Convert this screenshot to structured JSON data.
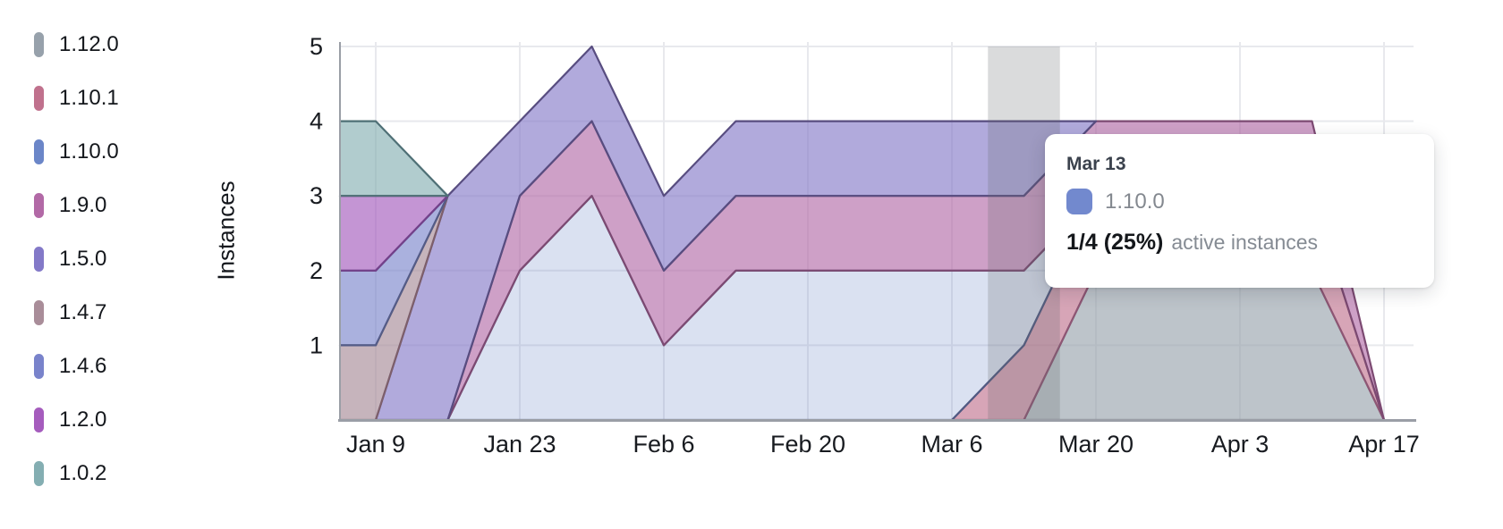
{
  "chart_data": {
    "type": "area",
    "stacked": true,
    "ylabel": "Instances",
    "ylim": [
      0,
      5
    ],
    "yticks": [
      "1",
      "2",
      "3",
      "4",
      "5"
    ],
    "x": [
      "Jan 9",
      "Jan 16",
      "Jan 23",
      "Jan 30",
      "Feb 6",
      "Feb 13",
      "Feb 20",
      "Feb 27",
      "Mar 6",
      "Mar 13",
      "Mar 20",
      "Mar 27",
      "Apr 3",
      "Apr 10",
      "Apr 17"
    ],
    "xticks": [
      {
        "label": "Jan 9",
        "week": 0
      },
      {
        "label": "Jan 23",
        "week": 2
      },
      {
        "label": "Feb 6",
        "week": 4
      },
      {
        "label": "Feb 20",
        "week": 6
      },
      {
        "label": "Mar 6",
        "week": 8
      },
      {
        "label": "Mar 20",
        "week": 10
      },
      {
        "label": "Apr 3",
        "week": 12
      },
      {
        "label": "Apr 17",
        "week": 14
      }
    ],
    "grid": true,
    "legend_position": "left",
    "stack_order_bottom_to_top": [
      "1.12.0",
      "1.10.1",
      "1.10.0",
      "1.9.0",
      "1.5.0",
      "1.4.7",
      "1.4.6",
      "1.2.0",
      "1.0.2"
    ],
    "series": [
      {
        "name": "1.12.0",
        "fill": "rgba(151,161,171,0.63)",
        "stroke": "#6f7680",
        "values": [
          0,
          0,
          0,
          0,
          0,
          0,
          0,
          0,
          0,
          0,
          2,
          2,
          2,
          2,
          0
        ]
      },
      {
        "name": "1.10.1",
        "fill": "rgba(192,113,141,0.63)",
        "stroke": "#8e5674",
        "values": [
          0,
          0,
          0,
          0,
          0,
          0,
          0,
          0,
          0,
          1,
          1,
          1,
          1,
          1,
          0
        ]
      },
      {
        "name": "1.10.0",
        "fill": "rgba(107,134,200,0.25)",
        "stroke": "#4f5a83",
        "values": [
          0,
          0,
          2,
          3,
          1,
          2,
          2,
          2,
          2,
          1,
          0,
          0,
          0,
          0,
          0
        ]
      },
      {
        "name": "1.9.0",
        "fill": "rgba(178,105,166,0.63)",
        "stroke": "#7c4a72",
        "values": [
          0,
          0,
          1,
          1,
          1,
          1,
          1,
          1,
          1,
          1,
          1,
          1,
          1,
          1,
          0
        ]
      },
      {
        "name": "1.5.0",
        "fill": "rgba(131,121,200,0.63)",
        "stroke": "#584d80",
        "values": [
          0,
          3,
          1,
          1,
          1,
          1,
          1,
          1,
          1,
          1,
          0,
          0,
          0,
          0,
          0
        ]
      },
      {
        "name": "1.4.7",
        "fill": "rgba(169,141,153,0.66)",
        "stroke": "#7d5f6b",
        "values": [
          1,
          0,
          0,
          0,
          0,
          0,
          0,
          0,
          0,
          0,
          0,
          0,
          0,
          0,
          0
        ]
      },
      {
        "name": "1.4.6",
        "fill": "rgba(121,131,203,0.63)",
        "stroke": "#545c87",
        "values": [
          1,
          0,
          0,
          0,
          0,
          0,
          0,
          0,
          0,
          0,
          0,
          0,
          0,
          0,
          0
        ]
      },
      {
        "name": "1.2.0",
        "fill": "rgba(165,92,189,0.65)",
        "stroke": "#73418a",
        "values": [
          1,
          0,
          0,
          0,
          0,
          0,
          0,
          0,
          0,
          0,
          0,
          0,
          0,
          0,
          0
        ]
      },
      {
        "name": "1.0.2",
        "fill": "rgba(132,174,178,0.63)",
        "stroke": "#4f7076",
        "values": [
          1,
          0,
          0,
          0,
          0,
          0,
          0,
          0,
          0,
          0,
          0,
          0,
          0,
          0,
          0
        ]
      }
    ],
    "hover": {
      "week": 9,
      "label": "Mar 13"
    }
  },
  "legend": {
    "items": [
      {
        "label": "1.12.0",
        "color": "#97a1ab"
      },
      {
        "label": "1.10.1",
        "color": "#c0718d"
      },
      {
        "label": "1.10.0",
        "color": "#6b86c8"
      },
      {
        "label": "1.9.0",
        "color": "#b269a6"
      },
      {
        "label": "1.5.0",
        "color": "#8379c8"
      },
      {
        "label": "1.4.7",
        "color": "#a98d99"
      },
      {
        "label": "1.4.6",
        "color": "#7983cb"
      },
      {
        "label": "1.2.0",
        "color": "#a55cbd"
      },
      {
        "label": "1.0.2",
        "color": "#84aeb2"
      }
    ]
  },
  "tooltip": {
    "date": "Mar 13",
    "series": "1.10.0",
    "chip_color": "#7289ce",
    "value": "1/4 (25%)",
    "suffix": "active instances"
  },
  "axes": {
    "tick_color": "#181b20",
    "grid_color": "#e8e9ed",
    "axis_line_color": "#9a9ea6",
    "hover_band_color": "rgba(100,103,110,0.24)"
  }
}
